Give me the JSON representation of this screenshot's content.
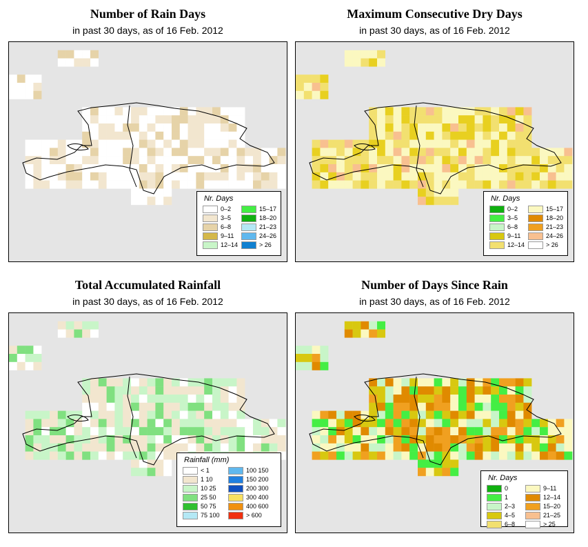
{
  "panels": [
    {
      "title": "Number of Rain Days",
      "subtitle": "in past 30 days, as of  16 Feb. 2012",
      "legend_title": "Nr. Days",
      "legend": [
        {
          "label": "0–2",
          "color": "#ffffff"
        },
        {
          "label": "3–5",
          "color": "#f2e6cf"
        },
        {
          "label": "6–8",
          "color": "#e6d3a8"
        },
        {
          "label": "9–11",
          "color": "#d4b84a"
        },
        {
          "label": "12–14",
          "color": "#c8f5c8"
        },
        {
          "label": "15–17",
          "color": "#44ee44"
        },
        {
          "label": "18–20",
          "color": "#10b010"
        },
        {
          "label": "21–23",
          "color": "#b4e8f5"
        },
        {
          "label": "24–26",
          "color": "#60b8ee"
        },
        {
          "label": "> 26",
          "color": "#1080d0"
        }
      ]
    },
    {
      "title": "Maximum Consecutive Dry Days",
      "subtitle": "in past 30 days, as of  16 Feb. 2012",
      "legend_title": "Nr. Days",
      "legend": [
        {
          "label": "0–2",
          "color": "#10b010"
        },
        {
          "label": "3–5",
          "color": "#44ee44"
        },
        {
          "label": "6–8",
          "color": "#c8f5c8"
        },
        {
          "label": "9–11",
          "color": "#d8c810"
        },
        {
          "label": "12–14",
          "color": "#f2e070"
        },
        {
          "label": "15–17",
          "color": "#fbf8c0"
        },
        {
          "label": "18–20",
          "color": "#e08a00"
        },
        {
          "label": "21–23",
          "color": "#f0a020"
        },
        {
          "label": "24–26",
          "color": "#f8c090"
        },
        {
          "label": "> 26",
          "color": "#ffffff"
        }
      ]
    },
    {
      "title": "Total Accumulated Rainfall",
      "subtitle": "in past 30 days, as of  16 Feb. 2012",
      "legend_title": "Rainfall (mm)",
      "legend": [
        {
          "label": "< 1",
          "color": "#ffffff"
        },
        {
          "label": "1     10",
          "color": "#f2e6cf"
        },
        {
          "label": "10     25",
          "color": "#c8f5c8"
        },
        {
          "label": "25     50",
          "color": "#80e080"
        },
        {
          "label": "50     75",
          "color": "#30c030"
        },
        {
          "label": "75   100",
          "color": "#b4e8f5"
        },
        {
          "label": "100   150",
          "color": "#60b8ee"
        },
        {
          "label": "150   200",
          "color": "#2080e0"
        },
        {
          "label": "200   300",
          "color": "#1050c0"
        },
        {
          "label": "300   400",
          "color": "#f8e060"
        },
        {
          "label": "400   600",
          "color": "#f09010"
        },
        {
          "label": "> 600",
          "color": "#f03010"
        }
      ]
    },
    {
      "title": "Number of Days Since Rain",
      "subtitle": "in past 30 days, as of  16 Feb. 2012",
      "legend_title": "Nr. Days",
      "legend": [
        {
          "label": "0",
          "color": "#10b010"
        },
        {
          "label": "1",
          "color": "#44ee44"
        },
        {
          "label": "2–3",
          "color": "#c8f5c8"
        },
        {
          "label": "4–5",
          "color": "#d8c810"
        },
        {
          "label": "6–8",
          "color": "#f2e070"
        },
        {
          "label": "9–11",
          "color": "#fbf8c0"
        },
        {
          "label": "12–14",
          "color": "#e08a00"
        },
        {
          "label": "15–20",
          "color": "#f0a020"
        },
        {
          "label": "21–25",
          "color": "#f8c090"
        },
        {
          "label": "> 25",
          "color": "#ffffff"
        }
      ]
    }
  ]
}
